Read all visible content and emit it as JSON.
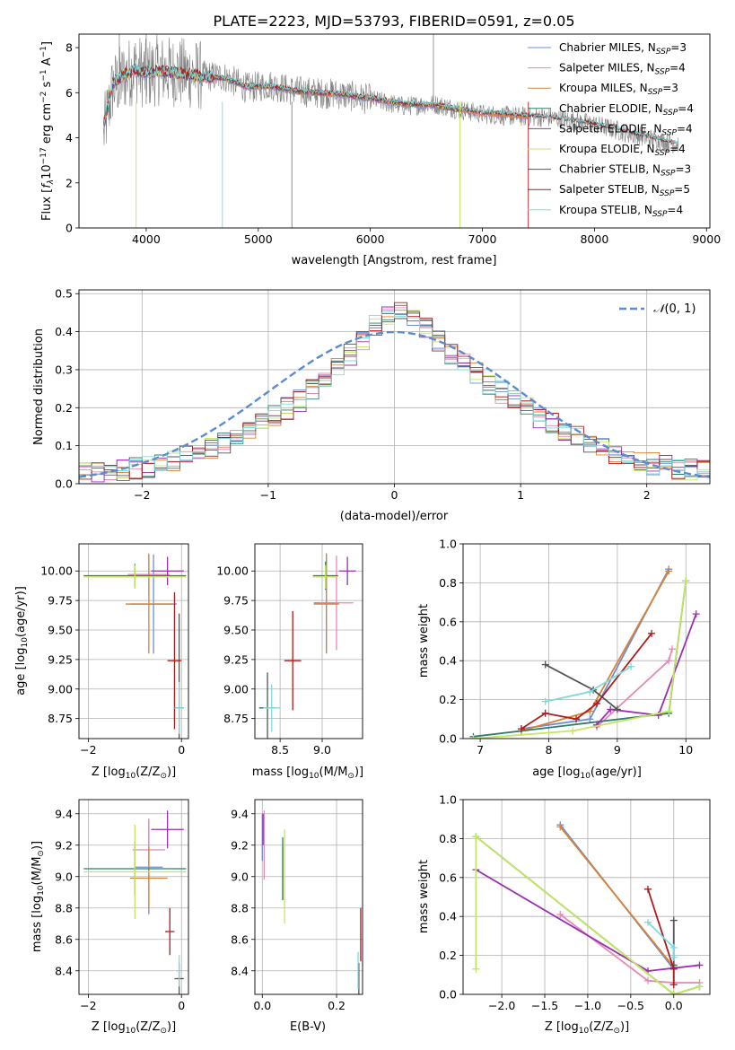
{
  "title": "PLATE=2223, MJD=53793, FIBERID=0591, z=0.05",
  "chart_data": [
    {
      "id": "spectrum",
      "type": "line",
      "xlabel": "wavelength [Angstrom, rest frame]",
      "xlim": [
        3400,
        9030
      ],
      "ylim": [
        0,
        8.6
      ],
      "xticks": [
        4000,
        5000,
        6000,
        7000,
        8000,
        9000
      ],
      "yticks": [
        0,
        2,
        4,
        6,
        8
      ],
      "xtick_labels": [
        "4000",
        "5000",
        "6000",
        "7000",
        "8000",
        "9000"
      ],
      "ytick_labels": [
        "0",
        "2",
        "4",
        "6",
        "8"
      ],
      "ylabel_parts": {
        "pre": "Flux [",
        "f": "f",
        "lam": "λ",
        "mid": "10",
        "exp1": "−17",
        "mid2": " erg cm",
        "exp2": "−2",
        "mid3": " s",
        "exp3": "−1",
        "mid4": " A",
        "exp4": "−1",
        "post": "]"
      },
      "legend_position": "top-right",
      "data_color": "#808080",
      "data_knots": [
        [
          3620,
          4.2
        ],
        [
          3700,
          6.2
        ],
        [
          3800,
          6.7
        ],
        [
          3900,
          7.1
        ],
        [
          4000,
          6.8
        ],
        [
          4100,
          7.0
        ],
        [
          4300,
          6.9
        ],
        [
          4500,
          6.75
        ],
        [
          4700,
          6.7
        ],
        [
          4900,
          6.2
        ],
        [
          5100,
          6.35
        ],
        [
          5300,
          6.1
        ],
        [
          5500,
          6.0
        ],
        [
          5700,
          5.95
        ],
        [
          6000,
          5.7
        ],
        [
          6300,
          5.4
        ],
        [
          6560,
          5.5
        ],
        [
          6800,
          5.25
        ],
        [
          7000,
          5.05
        ],
        [
          7300,
          4.95
        ],
        [
          7600,
          4.9
        ],
        [
          8000,
          4.6
        ],
        [
          8300,
          4.2
        ],
        [
          8500,
          3.95
        ],
        [
          8750,
          3.7
        ]
      ],
      "model_knots": [
        [
          3620,
          4.5
        ],
        [
          3700,
          6.4
        ],
        [
          3800,
          6.8
        ],
        [
          3900,
          7.0
        ],
        [
          4000,
          6.9
        ],
        [
          4100,
          6.95
        ],
        [
          4300,
          6.85
        ],
        [
          4500,
          6.7
        ],
        [
          4700,
          6.65
        ],
        [
          4900,
          6.25
        ],
        [
          5100,
          6.3
        ],
        [
          5300,
          6.1
        ],
        [
          5500,
          6.0
        ],
        [
          5700,
          5.95
        ],
        [
          6000,
          5.75
        ],
        [
          6300,
          5.5
        ],
        [
          6560,
          5.45
        ],
        [
          6800,
          5.25
        ],
        [
          7000,
          5.1
        ],
        [
          7300,
          5.0
        ],
        [
          7600,
          4.9
        ],
        [
          8000,
          4.6
        ],
        [
          8300,
          4.25
        ],
        [
          8500,
          4.0
        ],
        [
          8750,
          3.7
        ]
      ],
      "series": [
        {
          "name": "Chabrier MILES",
          "ssp": "3",
          "color": "#6c8ed8",
          "xmax": 7400
        },
        {
          "name": "Salpeter MILES",
          "ssp": "4",
          "color": "#e589b5",
          "xmax": 7400
        },
        {
          "name": "Kroupa MILES",
          "ssp": "3",
          "color": "#d98133",
          "xmax": 7400
        },
        {
          "name": "Chabrier ELODIE",
          "ssp": "4",
          "color": "#2f7d6c",
          "xmax": 6800
        },
        {
          "name": "Salpeter ELODIE",
          "ssp": "4",
          "color": "#9a2fb0",
          "xmax": 6800
        },
        {
          "name": "Kroupa ELODIE",
          "ssp": "4",
          "color": "#c4e65f",
          "xmax": 6800
        },
        {
          "name": "Chabrier STELIB",
          "ssp": "3",
          "color": "#555555",
          "xmax": 8750
        },
        {
          "name": "Salpeter STELIB",
          "ssp": "5",
          "color": "#b01c1c",
          "xmax": 8750
        },
        {
          "name": "Kroupa STELIB",
          "ssp": "4",
          "color": "#7fdadb",
          "xmax": 8750
        }
      ],
      "ssp_label": "N",
      "ssp_sub": "SSP"
    },
    {
      "id": "residuals",
      "type": "histogram",
      "xlabel": "(data-model)/error",
      "ylabel": "Normed distribution",
      "xlim": [
        -2.5,
        2.5
      ],
      "ylim": [
        0,
        0.51
      ],
      "xticks": [
        -2,
        -1,
        0,
        1,
        2
      ],
      "yticks": [
        0,
        0.1,
        0.2,
        0.3,
        0.4,
        0.5
      ],
      "xtick_labels": [
        "−2",
        "−1",
        "0",
        "1",
        "2"
      ],
      "ytick_labels": [
        "0.0",
        "0.1",
        "0.2",
        "0.3",
        "0.4",
        "0.5"
      ],
      "grid": true,
      "legend_position": "top-right",
      "normal_label_main": "𝒩",
      "normal_label_args": "(0, 1)",
      "normal_color": "#5b8bd0",
      "bin_width": 0.1,
      "bin_start": -2.5,
      "hist_colors": [
        "#6c8ed8",
        "#e589b5",
        "#d98133",
        "#2f7d6c",
        "#9a2fb0",
        "#c4e65f",
        "#555555",
        "#b01c1c",
        "#7fdadb"
      ]
    },
    {
      "id": "age-vs-Z",
      "type": "errorbar",
      "xlabel": "Z [log",
      "xlabel_sub": "10",
      "xlabel_tail": "(Z/Z",
      "xlabel_sun": "⊙",
      "xlabel_end": ")]",
      "ylabel": "age  [log",
      "ylabel_sub": "10",
      "ylabel_tail": "(age/yr)]",
      "xlim": [
        -2.2,
        0.15
      ],
      "ylim": [
        8.58,
        10.23
      ],
      "xticks": [
        -2,
        0
      ],
      "yticks": [
        8.75,
        9.0,
        9.25,
        9.5,
        9.75,
        10.0
      ],
      "xtick_labels": [
        "−2",
        "0"
      ],
      "ytick_labels": [
        "8.75",
        "9.00",
        "9.25",
        "9.50",
        "9.75",
        "10.00"
      ],
      "grid": true,
      "points": [
        {
          "x": -0.6,
          "y": 9.72,
          "xerr": 0.5,
          "yerr": 0.42,
          "color": "#6c8ed8"
        },
        {
          "x": -0.7,
          "y": 9.97,
          "xerr": 0.45,
          "yerr": 0.18,
          "color": "#e589b5"
        },
        {
          "x": -0.7,
          "y": 9.72,
          "xerr": 0.5,
          "yerr": 0.42,
          "color": "#d98133"
        },
        {
          "x": -1.0,
          "y": 9.96,
          "xerr": 1.1,
          "yerr": 0.1,
          "color": "#2f7d6c"
        },
        {
          "x": -0.3,
          "y": 10.0,
          "xerr": 0.35,
          "yerr": 0.12,
          "color": "#9a2fb0"
        },
        {
          "x": -1.0,
          "y": 9.95,
          "xerr": 1.1,
          "yerr": 0.1,
          "color": "#c4e65f"
        },
        {
          "x": -0.05,
          "y": 8.84,
          "xerr": 0.1,
          "yerr": 0.8,
          "color": "#555555"
        },
        {
          "x": -0.15,
          "y": 9.24,
          "xerr": 0.15,
          "yerr": 0.58,
          "color": "#b01c1c"
        },
        {
          "x": -0.05,
          "y": 8.84,
          "xerr": 0.1,
          "yerr": 0.22,
          "color": "#7fdadb"
        }
      ]
    },
    {
      "id": "age-vs-mass",
      "type": "errorbar",
      "xlabel": "mass [log",
      "xlabel_sub": "10",
      "xlabel_tail": "(M/M",
      "xlabel_sun": "⊙",
      "xlabel_end": ")]",
      "xlim": [
        8.2,
        9.48
      ],
      "ylim": [
        8.58,
        10.23
      ],
      "xticks": [
        8.5,
        9.0
      ],
      "yticks": [
        8.75,
        9.0,
        9.25,
        9.5,
        9.75,
        10.0
      ],
      "xtick_labels": [
        "8.5",
        "9.0"
      ],
      "ytick_labels": [
        "8.75",
        "9.00",
        "9.25",
        "9.50",
        "9.75",
        "10.00"
      ],
      "grid": true,
      "points": [
        {
          "x": 9.05,
          "y": 9.73,
          "xerr": 0.15,
          "yerr": 0.42,
          "color": "#6c8ed8"
        },
        {
          "x": 9.17,
          "y": 9.73,
          "xerr": 0.2,
          "yerr": 0.4,
          "color": "#e589b5"
        },
        {
          "x": 9.05,
          "y": 9.72,
          "xerr": 0.15,
          "yerr": 0.42,
          "color": "#d98133"
        },
        {
          "x": 9.04,
          "y": 9.96,
          "xerr": 0.15,
          "yerr": 0.12,
          "color": "#2f7d6c"
        },
        {
          "x": 9.3,
          "y": 10.0,
          "xerr": 0.1,
          "yerr": 0.12,
          "color": "#9a2fb0"
        },
        {
          "x": 9.04,
          "y": 9.95,
          "xerr": 0.15,
          "yerr": 0.1,
          "color": "#c4e65f"
        },
        {
          "x": 8.35,
          "y": 8.84,
          "xerr": 0.1,
          "yerr": 0.3,
          "color": "#555555"
        },
        {
          "x": 8.65,
          "y": 9.24,
          "xerr": 0.1,
          "yerr": 0.42,
          "color": "#b01c1c"
        },
        {
          "x": 8.4,
          "y": 8.84,
          "xerr": 0.1,
          "yerr": 0.2,
          "color": "#7fdadb"
        }
      ]
    },
    {
      "id": "weight-vs-age",
      "type": "line",
      "xlabel": "age  [log",
      "xlabel_sub": "10",
      "xlabel_tail": "(age/yr)]",
      "ylabel": "mass weight",
      "xlim": [
        6.75,
        10.35
      ],
      "ylim": [
        0,
        1.0
      ],
      "xticks": [
        7,
        8,
        9,
        10
      ],
      "yticks": [
        0,
        0.2,
        0.4,
        0.6,
        0.8,
        1.0
      ],
      "xtick_labels": [
        "7",
        "8",
        "9",
        "10"
      ],
      "ytick_labels": [
        "0.0",
        "0.2",
        "0.4",
        "0.6",
        "0.8",
        "1.0"
      ],
      "grid": true,
      "series": [
        {
          "color": "#6c8ed8",
          "x": [
            7.6,
            8.6,
            9.75
          ],
          "y": [
            0.05,
            0.1,
            0.87
          ]
        },
        {
          "color": "#e589b5",
          "x": [
            8.7,
            9.75,
            9.8
          ],
          "y": [
            0.06,
            0.4,
            0.46
          ]
        },
        {
          "color": "#d98133",
          "x": [
            7.6,
            8.6,
            9.75
          ],
          "y": [
            0.04,
            0.14,
            0.86
          ]
        },
        {
          "color": "#2f7d6c",
          "x": [
            6.9,
            9.75,
            10.0
          ],
          "y": [
            0.01,
            0.13,
            0.81
          ]
        },
        {
          "color": "#9a2fb0",
          "x": [
            8.7,
            8.9,
            9.6,
            10.15
          ],
          "y": [
            0.07,
            0.15,
            0.12,
            0.64
          ]
        },
        {
          "color": "#c4e65f",
          "x": [
            6.9,
            8.35,
            9.75,
            10.0
          ],
          "y": [
            0.0,
            0.04,
            0.14,
            0.81
          ]
        },
        {
          "color": "#555555",
          "x": [
            7.95,
            8.65,
            9.0
          ],
          "y": [
            0.38,
            0.25,
            0.15
          ]
        },
        {
          "color": "#b01c1c",
          "x": [
            7.6,
            7.95,
            8.4,
            8.7,
            9.5
          ],
          "y": [
            0.05,
            0.13,
            0.1,
            0.18,
            0.54
          ]
        },
        {
          "color": "#7fdadb",
          "x": [
            7.95,
            8.6,
            9.2
          ],
          "y": [
            0.19,
            0.24,
            0.37
          ]
        }
      ]
    },
    {
      "id": "mass-vs-Z",
      "type": "errorbar",
      "xlabel": "Z [log",
      "xlabel_sub": "10",
      "xlabel_tail": "(Z/Z",
      "xlabel_sun": "⊙",
      "xlabel_end": ")]",
      "ylabel": "mass [log",
      "ylabel_sub": "10",
      "ylabel_tail": "(M/M",
      "ylabel_sun": "⊙",
      "ylabel_end": ")]",
      "xlim": [
        -2.2,
        0.15
      ],
      "ylim": [
        8.25,
        9.49
      ],
      "xticks": [
        -2,
        0
      ],
      "yticks": [
        8.4,
        8.6,
        8.8,
        9.0,
        9.2,
        9.4
      ],
      "xtick_labels": [
        "−2",
        "0"
      ],
      "ytick_labels": [
        "8.4",
        "8.6",
        "8.8",
        "9.0",
        "9.2",
        "9.4"
      ],
      "grid": true,
      "points": [
        {
          "x": -0.7,
          "y": 9.06,
          "xerr": 0.3,
          "yerr": 0.3,
          "color": "#6c8ed8"
        },
        {
          "x": -0.7,
          "y": 9.17,
          "xerr": 0.35,
          "yerr": 0.2,
          "color": "#e589b5"
        },
        {
          "x": -0.7,
          "y": 8.99,
          "xerr": 0.4,
          "yerr": 0.2,
          "color": "#d98133"
        },
        {
          "x": -1.0,
          "y": 9.05,
          "xerr": 1.1,
          "yerr": 0.17,
          "color": "#2f7d6c"
        },
        {
          "x": -0.3,
          "y": 9.3,
          "xerr": 0.35,
          "yerr": 0.12,
          "color": "#9a2fb0"
        },
        {
          "x": -1.0,
          "y": 9.03,
          "xerr": 1.1,
          "yerr": 0.3,
          "color": "#c4e65f"
        },
        {
          "x": -0.05,
          "y": 8.35,
          "xerr": 0.1,
          "yerr": 0.1,
          "color": "#555555"
        },
        {
          "x": -0.25,
          "y": 8.65,
          "xerr": 0.1,
          "yerr": 0.15,
          "color": "#b01c1c"
        },
        {
          "x": -0.05,
          "y": 8.4,
          "xerr": 0.05,
          "yerr": 0.1,
          "color": "#7fdadb"
        }
      ]
    },
    {
      "id": "mass-vs-EBV",
      "type": "errorbar",
      "xlabel": "E(B-V)",
      "xlim": [
        -0.02,
        0.27
      ],
      "ylim": [
        8.25,
        9.49
      ],
      "xticks": [
        0.0,
        0.2
      ],
      "yticks": [
        8.4,
        8.6,
        8.8,
        9.0,
        9.2,
        9.4
      ],
      "xtick_labels": [
        "0.0",
        "0.2"
      ],
      "ytick_labels": [
        "8.4",
        "8.6",
        "8.8",
        "9.0",
        "9.2",
        "9.4"
      ],
      "grid": true,
      "points": [
        {
          "x": 0.0,
          "y": 9.25,
          "xerr": 0.0,
          "yerr": 0.15,
          "color": "#6c8ed8"
        },
        {
          "x": 0.005,
          "y": 9.2,
          "xerr": 0.0,
          "yerr": 0.22,
          "color": "#e589b5"
        },
        {
          "x": 0.055,
          "y": 9.02,
          "xerr": 0.0,
          "yerr": 0.17,
          "color": "#d98133"
        },
        {
          "x": 0.055,
          "y": 9.05,
          "xerr": 0.0,
          "yerr": 0.2,
          "color": "#2f7d6c"
        },
        {
          "x": 0.002,
          "y": 9.3,
          "xerr": 0.0,
          "yerr": 0.1,
          "color": "#9a2fb0"
        },
        {
          "x": 0.06,
          "y": 9.0,
          "xerr": 0.0,
          "yerr": 0.3,
          "color": "#c4e65f"
        },
        {
          "x": 0.26,
          "y": 8.35,
          "xerr": 0.0,
          "yerr": 0.1,
          "color": "#555555"
        },
        {
          "x": 0.265,
          "y": 8.63,
          "xerr": 0.0,
          "yerr": 0.17,
          "color": "#b01c1c"
        },
        {
          "x": 0.258,
          "y": 8.4,
          "xerr": 0.0,
          "yerr": 0.12,
          "color": "#7fdadb"
        }
      ]
    },
    {
      "id": "weight-vs-Z",
      "type": "line",
      "xlabel": "Z [log",
      "xlabel_sub": "10",
      "xlabel_tail": "(Z/Z",
      "xlabel_sun": "⊙",
      "xlabel_end": ")]",
      "ylabel": "mass weight",
      "xlim": [
        -2.45,
        0.42
      ],
      "ylim": [
        0,
        1.0
      ],
      "xticks": [
        -2.0,
        -1.5,
        -1.0,
        -0.5,
        0.0
      ],
      "yticks": [
        0,
        0.2,
        0.4,
        0.6,
        0.8,
        1.0
      ],
      "xtick_labels": [
        "−2.0",
        "−1.5",
        "−1.0",
        "−0.5",
        "0.0"
      ],
      "ytick_labels": [
        "0.0",
        "0.2",
        "0.4",
        "0.6",
        "0.8",
        "1.0"
      ],
      "grid": true,
      "series": [
        {
          "color": "#6c8ed8",
          "x": [
            -1.32,
            0.0,
            0.0
          ],
          "y": [
            0.87,
            0.13,
            0.05
          ]
        },
        {
          "color": "#e589b5",
          "x": [
            -1.32,
            -0.3,
            0.0,
            0.3
          ],
          "y": [
            0.41,
            0.07,
            0.06,
            0.06
          ]
        },
        {
          "color": "#d98133",
          "x": [
            -1.32,
            0.0
          ],
          "y": [
            0.86,
            0.14
          ]
        },
        {
          "color": "#2f7d6c",
          "x": [
            -2.3,
            0.0,
            0.3
          ],
          "y": [
            0.81,
            0.0,
            0.04
          ]
        },
        {
          "color": "#9a2fb0",
          "x": [
            -2.3,
            -0.3,
            0.3
          ],
          "y": [
            0.64,
            0.12,
            0.15
          ]
        },
        {
          "color": "#c4e65f",
          "x": [
            -2.3,
            -2.3,
            0.0,
            0.3
          ],
          "y": [
            0.13,
            0.81,
            0.0,
            0.04
          ]
        },
        {
          "color": "#555555",
          "x": [
            0.0,
            0.0
          ],
          "y": [
            0.38,
            0.15
          ]
        },
        {
          "color": "#b01c1c",
          "x": [
            -0.3,
            0.0,
            0.0
          ],
          "y": [
            0.54,
            0.13,
            0.05
          ]
        },
        {
          "color": "#7fdadb",
          "x": [
            -0.3,
            0.0,
            0.0
          ],
          "y": [
            0.37,
            0.24,
            0.19
          ]
        }
      ]
    }
  ]
}
